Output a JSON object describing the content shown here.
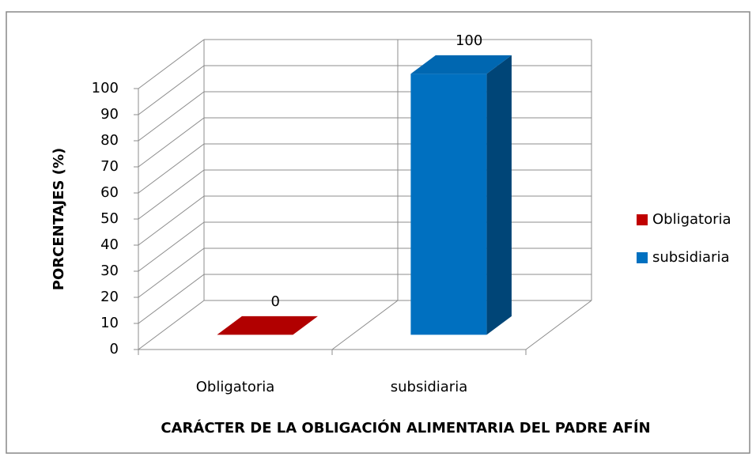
{
  "chart_data": {
    "type": "bar3d",
    "categories": [
      "Obligatoria",
      "subsidiaria"
    ],
    "values": [
      0,
      100
    ],
    "colors": [
      "#c00000",
      "#0070c0"
    ],
    "x_label": "CARÁCTER DE LA OBLIGACIÓN ALIMENTARIA DEL PADRE AFÍN",
    "y_label": "PORCENTAJES (%)",
    "ylim": [
      0,
      100
    ],
    "yticks": [
      0,
      10,
      20,
      30,
      40,
      50,
      60,
      70,
      80,
      90,
      100
    ],
    "grid": true,
    "legend": "right"
  }
}
